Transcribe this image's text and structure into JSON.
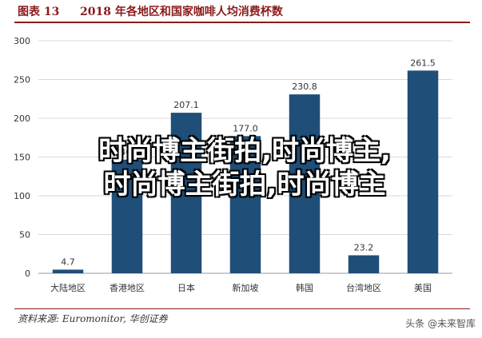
{
  "header": {
    "figure_label": "图表 13",
    "title": "2018 年各地区和国家咖啡人均消费杯数"
  },
  "overlay_text": {
    "line1": "时尚博主街拍,时尚博主,",
    "line2": "时尚博主街拍,时尚博主"
  },
  "footer": {
    "source": "资料来源: Euromonitor, 华创证券",
    "badge": "头条 @未来智库"
  },
  "colors": {
    "bar": "#1f4e79",
    "grid": "#d9d9d9",
    "text": "#333333",
    "accent": "#8b1a1a"
  },
  "chart_data": {
    "type": "bar",
    "title": "",
    "xlabel": "",
    "ylabel": "",
    "categories": [
      "大陆地区",
      "香港地区",
      "日本",
      "新加坡",
      "韩国",
      "台湾地区",
      "美国"
    ],
    "values": [
      4.7,
      146.6,
      207.1,
      177.0,
      230.8,
      23.2,
      261.5
    ],
    "value_labels": [
      "4.7",
      "146.6",
      "207.1",
      "177.0",
      "230.8",
      "23.2",
      "261.5"
    ],
    "ylim": [
      0,
      300
    ],
    "yticks": [
      0,
      50,
      100,
      150,
      200,
      250,
      300
    ],
    "grid": true,
    "legend": "none"
  }
}
